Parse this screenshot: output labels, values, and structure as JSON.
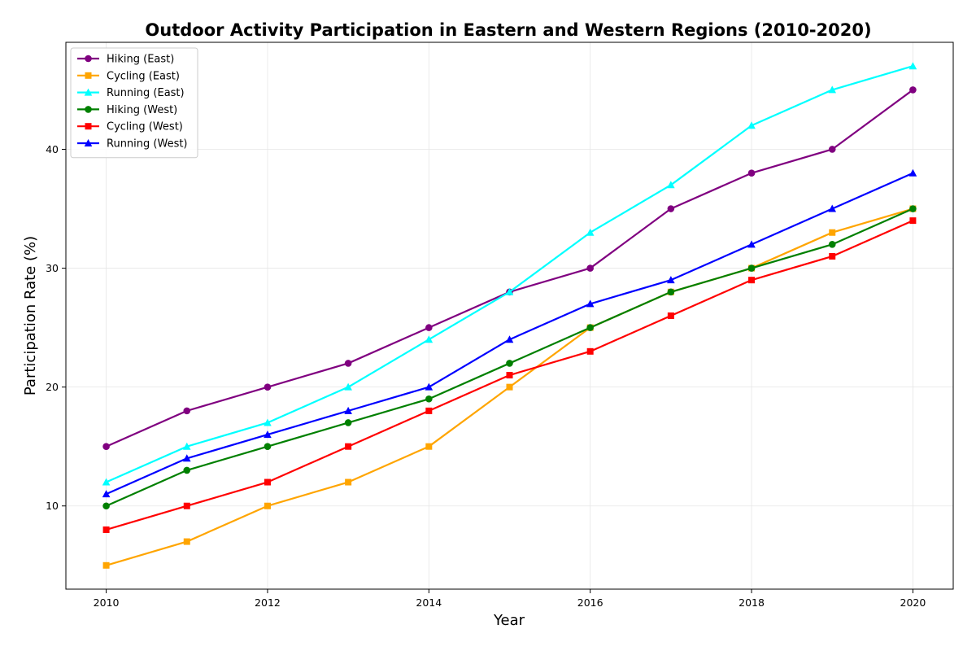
{
  "chart_data": {
    "type": "line",
    "title": "Outdoor Activity Participation in Eastern and Western Regions (2010-2020)",
    "xlabel": "Year",
    "ylabel": "Participation Rate (%)",
    "x": [
      2010,
      2011,
      2012,
      2013,
      2014,
      2015,
      2016,
      2017,
      2018,
      2019,
      2020
    ],
    "xlim": [
      2009.5,
      2020.5
    ],
    "ylim": [
      3,
      49
    ],
    "xticks": [
      2010,
      2012,
      2014,
      2016,
      2018,
      2020
    ],
    "yticks": [
      10,
      20,
      30,
      40
    ],
    "grid": true,
    "legend_position": "top-left",
    "series": [
      {
        "name": "Hiking (East)",
        "color": "#800080",
        "marker": "circle",
        "values": [
          15,
          18,
          20,
          22,
          25,
          28,
          30,
          35,
          38,
          40,
          45
        ]
      },
      {
        "name": "Cycling (East)",
        "color": "#FFA500",
        "marker": "square",
        "values": [
          5,
          7,
          10,
          12,
          15,
          20,
          25,
          28,
          30,
          33,
          35
        ]
      },
      {
        "name": "Running (East)",
        "color": "#00FFFF",
        "marker": "triangle",
        "values": [
          12,
          15,
          17,
          20,
          24,
          28,
          33,
          37,
          42,
          45,
          47
        ]
      },
      {
        "name": "Hiking (West)",
        "color": "#008000",
        "marker": "circle",
        "values": [
          10,
          13,
          15,
          17,
          19,
          22,
          25,
          28,
          30,
          32,
          35
        ]
      },
      {
        "name": "Cycling (West)",
        "color": "#FF0000",
        "marker": "square",
        "values": [
          8,
          10,
          12,
          15,
          18,
          21,
          23,
          26,
          29,
          31,
          34
        ]
      },
      {
        "name": "Running (West)",
        "color": "#0000FF",
        "marker": "triangle",
        "values": [
          11,
          14,
          16,
          18,
          20,
          24,
          27,
          29,
          32,
          35,
          38
        ]
      }
    ]
  }
}
